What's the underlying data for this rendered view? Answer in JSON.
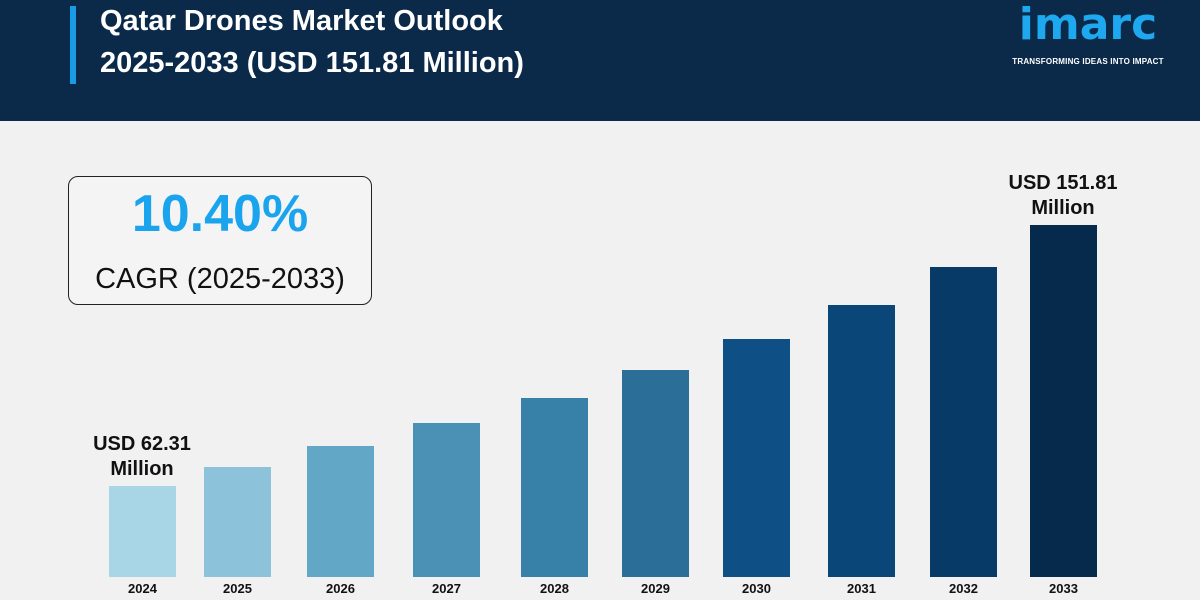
{
  "header": {
    "title_line1": "Qatar Drones Market Outlook",
    "title_line2": "2025-2033 (USD 151.81 Million)"
  },
  "logo": {
    "word": "imarc",
    "tagline": "TRANSFORMING IDEAS INTO IMPACT"
  },
  "cagr": {
    "value": "10.40%",
    "label": "CAGR (2025-2033)"
  },
  "colors": {
    "header_bg": "#0b2a4a",
    "accent": "#1a9be6"
  },
  "chart_data": {
    "type": "bar",
    "title": "Qatar Drones Market Outlook 2025-2033 (USD 151.81 Million)",
    "categories": [
      "2024",
      "2025",
      "2026",
      "2027",
      "2028",
      "2029",
      "2030",
      "2031",
      "2032",
      "2033"
    ],
    "values": [
      62.31,
      68.8,
      75.9,
      83.8,
      92.5,
      102.1,
      112.7,
      124.5,
      137.4,
      151.81
    ],
    "unit": "USD Million",
    "colors": [
      "#a8d6e7",
      "#8cc3da",
      "#63a7c6",
      "#4b91b5",
      "#3781a9",
      "#2b6f98",
      "#0e5086",
      "#0b4679",
      "#073a66",
      "#062a4c"
    ],
    "data_labels": [
      {
        "index": 0,
        "line1": "USD 62.31",
        "line2": "Million"
      },
      {
        "index": 9,
        "line1": "USD 151.81",
        "line2": "Million"
      }
    ],
    "grid": false,
    "legend": "none"
  }
}
